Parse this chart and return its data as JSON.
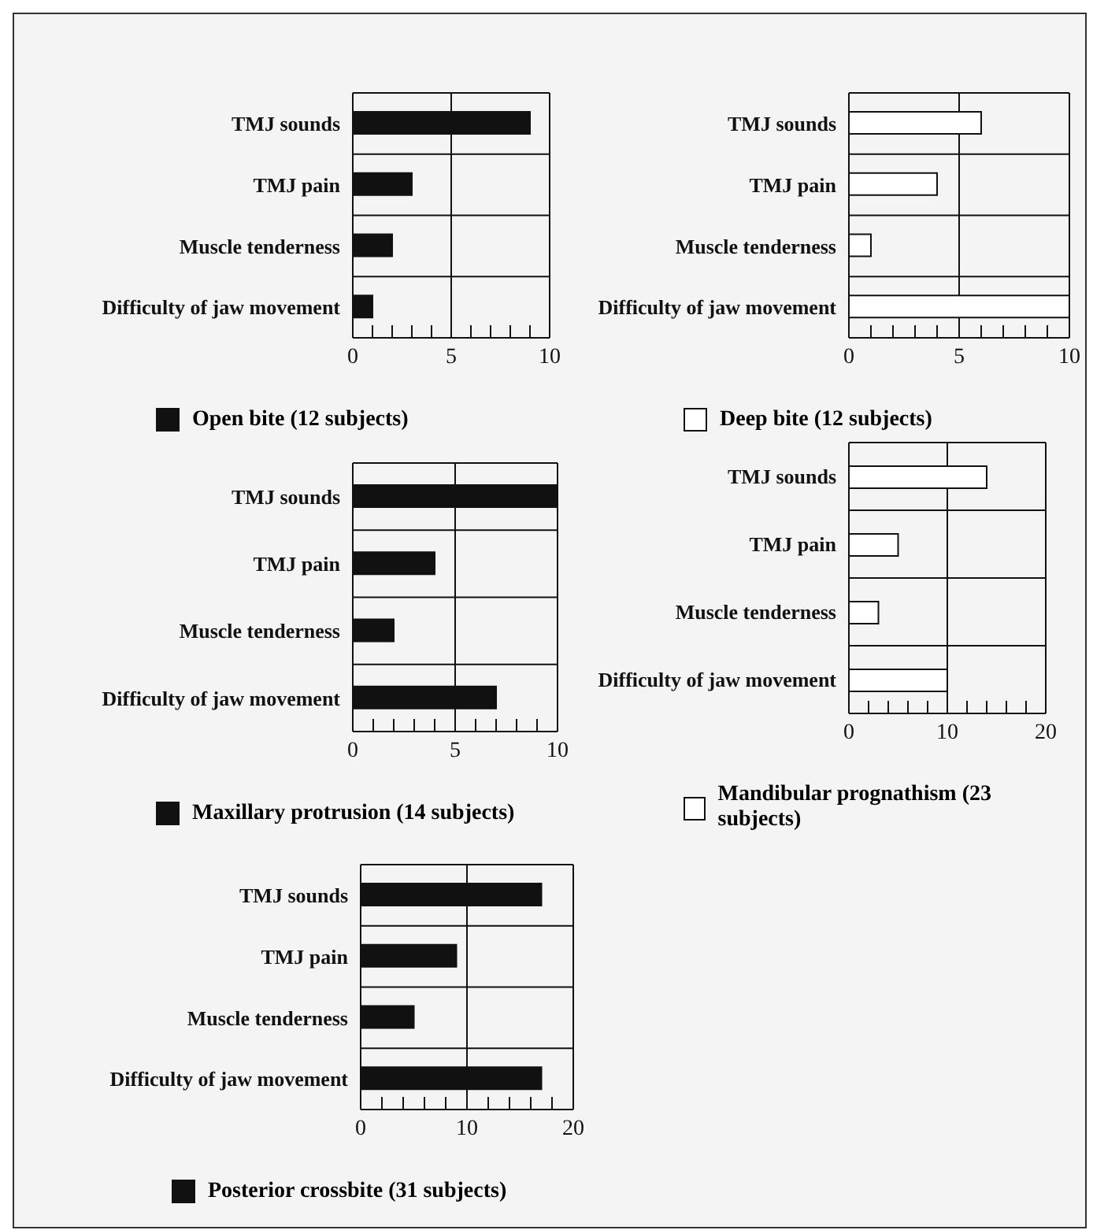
{
  "chart_data": [
    {
      "type": "bar",
      "orientation": "horizontal",
      "categories": [
        "TMJ sounds",
        "TMJ pain",
        "Muscle tenderness",
        "Difficulty of jaw movement"
      ],
      "series": [
        {
          "name": "Open bite (12 subjects)",
          "color": "#111111",
          "values": [
            9,
            3,
            2,
            1
          ]
        }
      ],
      "xlim": [
        0,
        10
      ],
      "xticks": [
        0,
        {
          "value": 1,
          "label": null
        },
        {
          "value": 2,
          "label": null
        },
        {
          "value": 3,
          "label": null
        },
        {
          "value": 4,
          "label": null
        },
        5,
        {
          "value": 6,
          "label": null
        },
        {
          "value": 7,
          "label": null
        },
        {
          "value": 8,
          "label": null
        },
        {
          "value": 9,
          "label": null
        },
        10
      ],
      "grid": true,
      "legend": "bottom"
    },
    {
      "type": "bar",
      "orientation": "horizontal",
      "categories": [
        "TMJ sounds",
        "TMJ pain",
        "Muscle tenderness",
        "Difficulty of jaw movement"
      ],
      "series": [
        {
          "name": "Deep bite (12 subjects)",
          "color": "#ffffff",
          "values": [
            6,
            4,
            1,
            10
          ]
        }
      ],
      "xlim": [
        0,
        10
      ],
      "xticks": [
        0,
        {
          "value": 1,
          "label": null
        },
        {
          "value": 2,
          "label": null
        },
        {
          "value": 3,
          "label": null
        },
        {
          "value": 4,
          "label": null
        },
        5,
        {
          "value": 6,
          "label": null
        },
        {
          "value": 7,
          "label": null
        },
        {
          "value": 8,
          "label": null
        },
        {
          "value": 9,
          "label": null
        },
        10
      ],
      "grid": true,
      "legend": "bottom"
    },
    {
      "type": "bar",
      "orientation": "horizontal",
      "categories": [
        "TMJ sounds",
        "TMJ pain",
        "Muscle tenderness",
        "Difficulty of jaw movement"
      ],
      "series": [
        {
          "name": "Maxillary protrusion (14 subjects)",
          "color": "#111111",
          "values": [
            10,
            4,
            2,
            7
          ]
        }
      ],
      "xlim": [
        0,
        10
      ],
      "xticks": [
        0,
        {
          "value": 1,
          "label": null
        },
        {
          "value": 2,
          "label": null
        },
        {
          "value": 3,
          "label": null
        },
        {
          "value": 4,
          "label": null
        },
        5,
        {
          "value": 6,
          "label": null
        },
        {
          "value": 7,
          "label": null
        },
        {
          "value": 8,
          "label": null
        },
        {
          "value": 9,
          "label": null
        },
        10
      ],
      "grid": true,
      "legend": "bottom"
    },
    {
      "type": "bar",
      "orientation": "horizontal",
      "categories": [
        "TMJ sounds",
        "TMJ pain",
        "Muscle tenderness",
        "Difficulty of jaw movement"
      ],
      "series": [
        {
          "name": "Mandibular prognathism (23 subjects)",
          "color": "#ffffff",
          "values": [
            14,
            5,
            3,
            10
          ]
        }
      ],
      "xlim": [
        0,
        20
      ],
      "xticks": [
        0,
        {
          "value": 2,
          "label": null
        },
        {
          "value": 4,
          "label": null
        },
        {
          "value": 6,
          "label": null
        },
        {
          "value": 8,
          "label": null
        },
        10,
        {
          "value": 12,
          "label": null
        },
        {
          "value": 14,
          "label": null
        },
        {
          "value": 16,
          "label": null
        },
        {
          "value": 18,
          "label": null
        },
        20
      ],
      "grid": true,
      "legend": "bottom"
    },
    {
      "type": "bar",
      "orientation": "horizontal",
      "categories": [
        "TMJ sounds",
        "TMJ pain",
        "Muscle tenderness",
        "Difficulty of jaw movement"
      ],
      "series": [
        {
          "name": "Posterior crossbite (31 subjects)",
          "color": "#111111",
          "values": [
            17,
            9,
            5,
            17
          ]
        }
      ],
      "xlim": [
        0,
        20
      ],
      "xticks": [
        0,
        {
          "value": 2,
          "label": null
        },
        {
          "value": 4,
          "label": null
        },
        {
          "value": 6,
          "label": null
        },
        {
          "value": 8,
          "label": null
        },
        10,
        {
          "value": 12,
          "label": null
        },
        {
          "value": 14,
          "label": null
        },
        {
          "value": 16,
          "label": null
        },
        {
          "value": 18,
          "label": null
        },
        20
      ],
      "grid": true,
      "legend": "bottom"
    }
  ]
}
